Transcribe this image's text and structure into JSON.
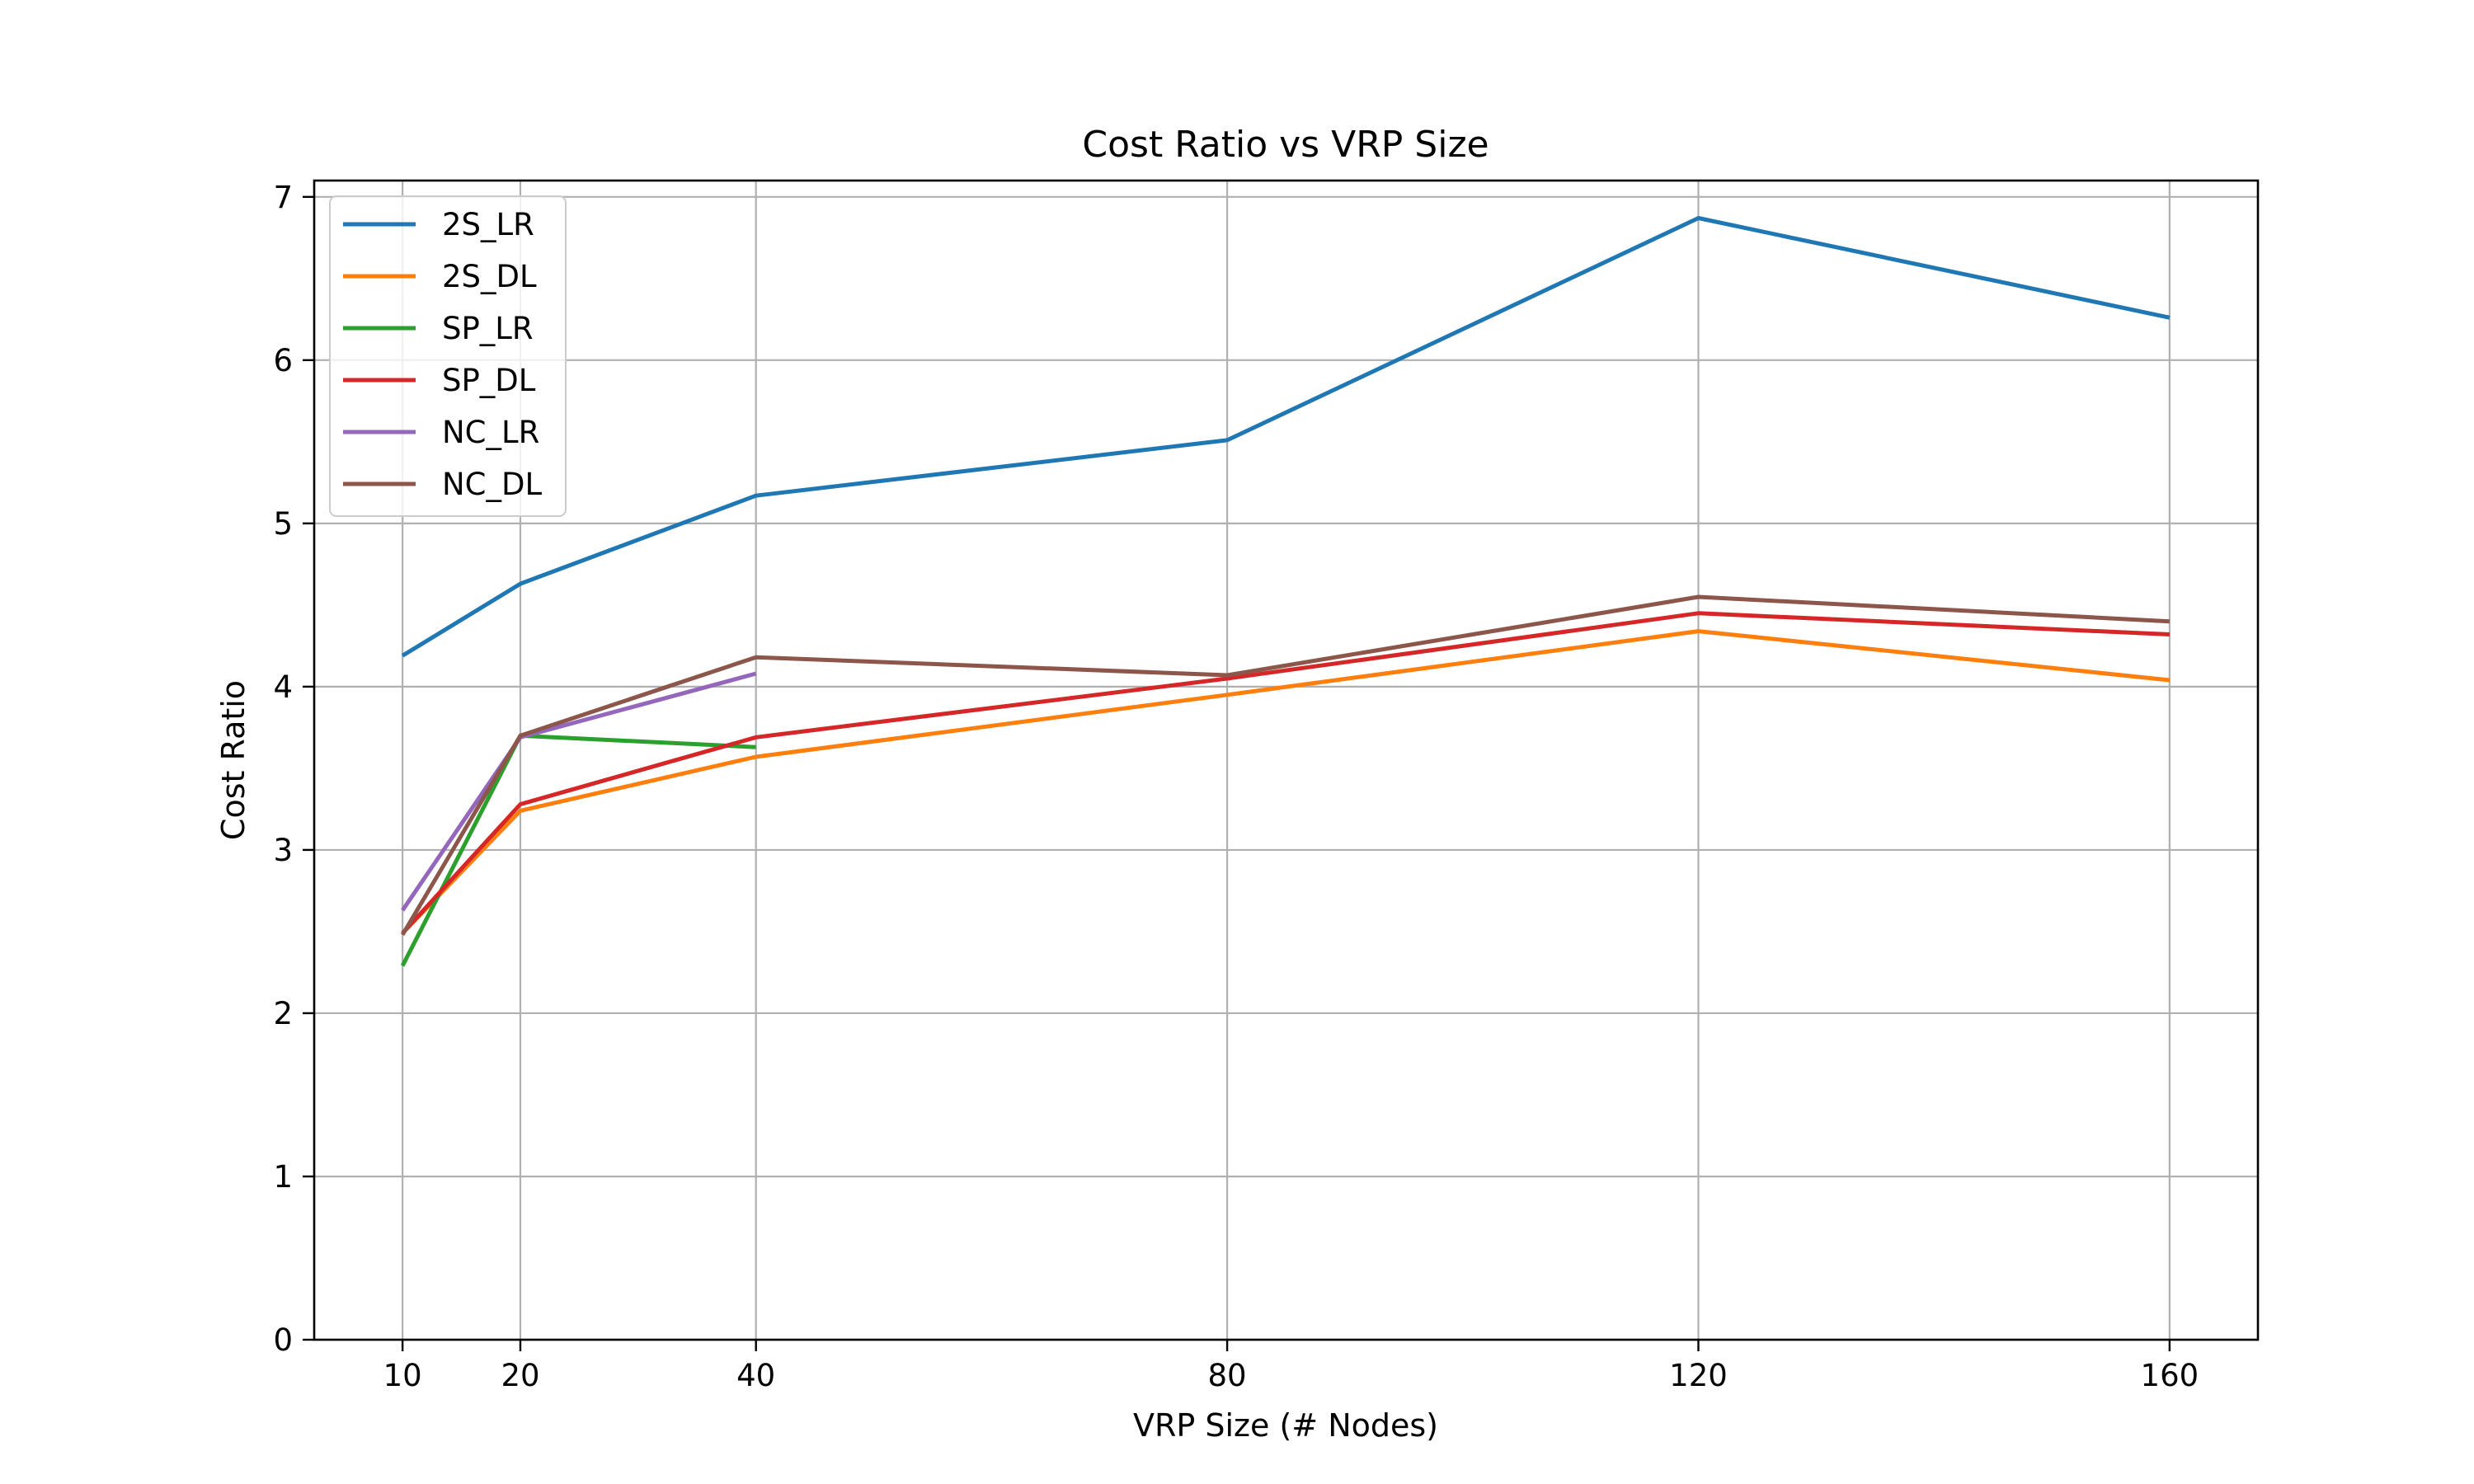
{
  "chart_data": {
    "type": "line",
    "title": "Cost Ratio vs VRP Size",
    "xlabel": "VRP Size (# Nodes)",
    "ylabel": "Cost Ratio",
    "x_ticks": [
      10,
      20,
      40,
      80,
      120,
      160
    ],
    "y_ticks": [
      0,
      1,
      2,
      3,
      4,
      5,
      6,
      7
    ],
    "xlim": [
      2.5,
      167.5
    ],
    "ylim": [
      0,
      7.1
    ],
    "grid": true,
    "legend_position": "upper-left",
    "series": [
      {
        "name": "2S_LR",
        "color": "#1f77b4",
        "x": [
          10,
          20,
          40,
          80,
          120,
          160
        ],
        "y": [
          4.19,
          4.63,
          5.17,
          5.51,
          6.87,
          6.26
        ]
      },
      {
        "name": "2S_DL",
        "color": "#ff7f0e",
        "x": [
          10,
          20,
          40,
          80,
          120,
          160
        ],
        "y": [
          2.49,
          3.24,
          3.57,
          3.95,
          4.34,
          4.04
        ]
      },
      {
        "name": "SP_LR",
        "color": "#2ca02c",
        "x": [
          10,
          20,
          40
        ],
        "y": [
          2.29,
          3.7,
          3.63
        ]
      },
      {
        "name": "SP_DL",
        "color": "#d62728",
        "x": [
          10,
          20,
          40,
          80,
          120,
          160
        ],
        "y": [
          2.49,
          3.28,
          3.69,
          4.05,
          4.45,
          4.32
        ]
      },
      {
        "name": "NC_LR",
        "color": "#9467bd",
        "x": [
          10,
          20,
          40
        ],
        "y": [
          2.63,
          3.69,
          4.08
        ]
      },
      {
        "name": "NC_DL",
        "color": "#8c564b",
        "x": [
          10,
          20,
          40,
          80,
          120,
          160
        ],
        "y": [
          2.48,
          3.7,
          4.18,
          4.07,
          4.55,
          4.4
        ]
      }
    ]
  }
}
